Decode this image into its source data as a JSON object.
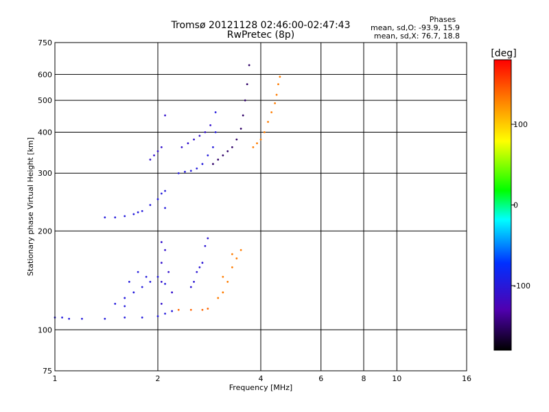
{
  "chart_data": {
    "type": "scatter",
    "title_line1": "Tromsø 20121128 02:46:00-02:47:43",
    "title_line2": "RwPretec (8p)",
    "stats": {
      "header": "Phases",
      "line_o": "mean, sd,O: -93.9, 15.9",
      "line_x": "mean, sd,X: 76.7, 18.8"
    },
    "xlabel": "Frequency [MHz]",
    "ylabel": "Stationary phase Virtual Height [km]",
    "x_scale": "log",
    "y_scale": "log",
    "xlim": [
      1,
      16
    ],
    "ylim": [
      75,
      750
    ],
    "x_ticks": [
      1,
      2,
      4,
      6,
      8,
      10,
      16
    ],
    "x_tick_labels": [
      "1",
      "2",
      "4",
      "6",
      "8",
      "10",
      "16"
    ],
    "y_ticks": [
      75,
      100,
      200,
      300,
      400,
      500,
      600,
      750
    ],
    "y_tick_labels": [
      "75",
      "100",
      "200",
      "300",
      "400",
      "500",
      "600",
      "750"
    ],
    "grid": true,
    "colorbar": {
      "label": "[deg]",
      "range": [
        -180,
        180
      ],
      "ticks": [
        100,
        0,
        -100
      ],
      "tick_labels": [
        "100",
        "0",
        "-100"
      ],
      "colors": [
        "#000000",
        "#5000b0",
        "#0030ff",
        "#00ffff",
        "#00ff00",
        "#ffff00",
        "#ff8000",
        "#ff0000"
      ]
    },
    "traces": [
      {
        "phase": -100,
        "points": [
          [
            1.0,
            109
          ],
          [
            1.05,
            109
          ],
          [
            1.1,
            108
          ],
          [
            1.2,
            108
          ],
          [
            1.4,
            108
          ],
          [
            1.6,
            109
          ],
          [
            1.8,
            109
          ],
          [
            2.0,
            110
          ],
          [
            2.1,
            112
          ],
          [
            2.2,
            114
          ]
        ]
      },
      {
        "phase": -110,
        "points": [
          [
            2.05,
            120
          ],
          [
            2.05,
            140
          ],
          [
            2.05,
            160
          ],
          [
            2.05,
            185
          ],
          [
            2.1,
            175
          ],
          [
            2.15,
            150
          ],
          [
            2.2,
            130
          ]
        ]
      },
      {
        "phase": -100,
        "points": [
          [
            1.5,
            120
          ],
          [
            1.6,
            125
          ],
          [
            1.7,
            130
          ],
          [
            1.8,
            135
          ],
          [
            1.9,
            140
          ],
          [
            2.0,
            145
          ],
          [
            2.1,
            138
          ],
          [
            1.65,
            140
          ],
          [
            1.75,
            150
          ],
          [
            1.85,
            145
          ],
          [
            1.6,
            118
          ]
        ]
      },
      {
        "phase": -105,
        "points": [
          [
            2.5,
            135
          ],
          [
            2.6,
            150
          ],
          [
            2.7,
            160
          ],
          [
            2.75,
            180
          ],
          [
            2.8,
            190
          ],
          [
            2.55,
            140
          ],
          [
            2.65,
            155
          ]
        ]
      },
      {
        "phase": 140,
        "points": [
          [
            2.3,
            115
          ],
          [
            2.5,
            115
          ],
          [
            2.7,
            115
          ],
          [
            2.8,
            116
          ]
        ]
      },
      {
        "phase": 130,
        "points": [
          [
            3.0,
            125
          ],
          [
            3.1,
            130
          ],
          [
            3.2,
            140
          ],
          [
            3.3,
            155
          ],
          [
            3.4,
            165
          ],
          [
            3.5,
            175
          ],
          [
            3.1,
            145
          ],
          [
            3.3,
            170
          ]
        ]
      },
      {
        "phase": -100,
        "points": [
          [
            1.4,
            220
          ],
          [
            1.5,
            220
          ],
          [
            1.6,
            222
          ],
          [
            1.7,
            225
          ],
          [
            1.8,
            230
          ],
          [
            1.9,
            240
          ],
          [
            2.0,
            250
          ],
          [
            2.05,
            260
          ],
          [
            2.1,
            265
          ],
          [
            2.1,
            235
          ],
          [
            1.75,
            228
          ]
        ]
      },
      {
        "phase": -100,
        "points": [
          [
            2.3,
            300
          ],
          [
            2.4,
            303
          ],
          [
            2.5,
            305
          ],
          [
            2.6,
            310
          ],
          [
            2.7,
            320
          ],
          [
            2.8,
            340
          ],
          [
            2.9,
            360
          ],
          [
            2.95,
            400
          ],
          [
            2.95,
            460
          ]
        ]
      },
      {
        "phase": -110,
        "points": [
          [
            2.35,
            360
          ],
          [
            2.45,
            370
          ],
          [
            2.55,
            380
          ],
          [
            2.65,
            390
          ],
          [
            2.75,
            400
          ],
          [
            2.85,
            420
          ]
        ]
      },
      {
        "phase": -150,
        "points": [
          [
            2.9,
            320
          ],
          [
            3.0,
            330
          ],
          [
            3.1,
            340
          ],
          [
            3.2,
            350
          ],
          [
            3.3,
            360
          ],
          [
            3.4,
            380
          ],
          [
            3.5,
            410
          ],
          [
            3.55,
            450
          ],
          [
            3.6,
            500
          ],
          [
            3.65,
            560
          ],
          [
            3.7,
            640
          ]
        ]
      },
      {
        "phase": 130,
        "points": [
          [
            3.8,
            360
          ],
          [
            3.9,
            370
          ],
          [
            4.0,
            380
          ],
          [
            4.1,
            400
          ],
          [
            4.2,
            430
          ],
          [
            4.3,
            460
          ],
          [
            4.4,
            490
          ],
          [
            4.45,
            520
          ],
          [
            4.5,
            560
          ],
          [
            4.55,
            590
          ]
        ]
      },
      {
        "phase": -110,
        "points": [
          [
            1.9,
            330
          ],
          [
            1.95,
            340
          ],
          [
            2.0,
            350
          ],
          [
            2.05,
            360
          ],
          [
            2.1,
            450
          ]
        ]
      }
    ]
  }
}
